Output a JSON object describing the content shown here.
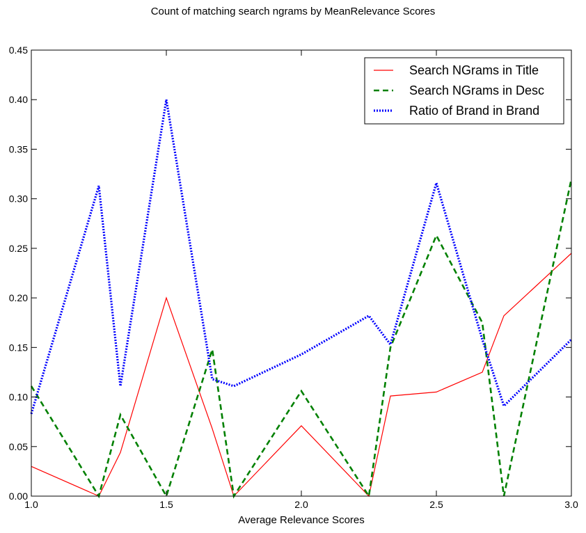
{
  "chart_data": {
    "type": "line",
    "title": "Count of matching search ngrams by MeanRelevance Scores",
    "xlabel": "Average Relevance Scores",
    "ylabel": "",
    "xlim": [
      1.0,
      3.0
    ],
    "ylim": [
      0.0,
      0.45
    ],
    "xticks": [
      "1.0",
      "1.5",
      "2.0",
      "2.5",
      "3.0"
    ],
    "yticks": [
      "0.00",
      "0.05",
      "0.10",
      "0.15",
      "0.20",
      "0.25",
      "0.30",
      "0.35",
      "0.40",
      "0.45"
    ],
    "grid": false,
    "legend_position": "top-right",
    "x": [
      1.0,
      1.25,
      1.33,
      1.5,
      1.67,
      1.75,
      2.0,
      2.25,
      2.33,
      2.5,
      2.67,
      2.75,
      3.0
    ],
    "series": [
      {
        "name": "Search NGrams in Title",
        "color": "#ff0000",
        "style": "solid",
        "values": [
          0.03,
          0.0,
          0.044,
          0.2,
          0.068,
          0.0,
          0.071,
          0.0,
          0.101,
          0.105,
          0.125,
          0.182,
          0.245
        ]
      },
      {
        "name": "Search NGrams in Desc",
        "color": "#008000",
        "style": "dashed",
        "values": [
          0.111,
          0.0,
          0.082,
          0.0,
          0.148,
          0.0,
          0.106,
          0.0,
          0.15,
          0.263,
          0.175,
          0.0,
          0.32
        ]
      },
      {
        "name": "Ratio of Brand in Brand",
        "color": "#0000ff",
        "style": "dotted",
        "values": [
          0.083,
          0.313,
          0.111,
          0.4,
          0.118,
          0.111,
          0.143,
          0.182,
          0.153,
          0.316,
          0.158,
          0.091,
          0.158
        ]
      }
    ]
  }
}
